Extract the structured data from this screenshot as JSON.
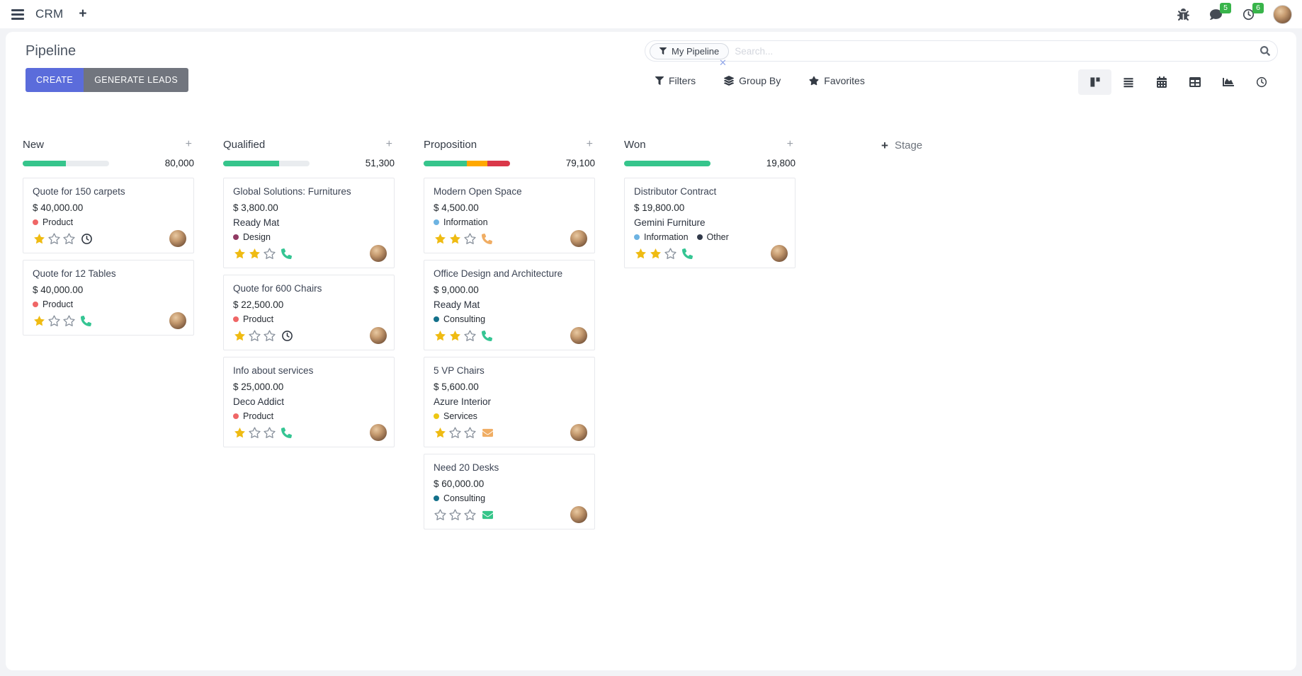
{
  "navbar": {
    "app": "CRM",
    "message_badge": "5",
    "activity_badge": "6"
  },
  "control_panel": {
    "title": "Pipeline",
    "create_label": "CREATE",
    "generate_label": "GENERATE LEADS",
    "search": {
      "facet_label": "My Pipeline",
      "placeholder": "Search..."
    },
    "filters_label": "Filters",
    "groupby_label": "Group By",
    "favorites_label": "Favorites",
    "add_stage_label": "Stage"
  },
  "colors": {
    "green": "#36c58c",
    "orange": "#ffa800",
    "red": "#da3849",
    "track": "#e9ecef",
    "star_filled": "#efbb12",
    "star_empty": "#8b939e",
    "phone_green": "#35c593",
    "phone_orange": "#f0ad63",
    "envelope_orange": "#f0ad63",
    "envelope_green": "#35c589",
    "clock_dark": "#2f3640"
  },
  "columns": [
    {
      "name": "New",
      "amount": "80,000",
      "progress": [
        {
          "color": "green",
          "pct": 50
        }
      ],
      "cards": [
        {
          "title": "Quote for 150 carpets",
          "amount": "$ 40,000.00",
          "tags": [
            {
              "label": "Product",
              "color": "#ef6666"
            }
          ],
          "stars": 1,
          "icon": "clock",
          "icon_color": "#2f3640"
        },
        {
          "title": "Quote for 12 Tables",
          "amount": "$ 40,000.00",
          "tags": [
            {
              "label": "Product",
              "color": "#ef6666"
            }
          ],
          "stars": 1,
          "icon": "phone",
          "icon_color": "#35c593"
        }
      ]
    },
    {
      "name": "Qualified",
      "amount": "51,300",
      "progress": [
        {
          "color": "green",
          "pct": 65
        }
      ],
      "cards": [
        {
          "title": "Global Solutions: Furnitures",
          "amount": "$ 3,800.00",
          "company": "Ready Mat",
          "tags": [
            {
              "label": "Design",
              "color": "#913a63"
            }
          ],
          "stars": 2,
          "icon": "phone",
          "icon_color": "#35c593"
        },
        {
          "title": "Quote for 600 Chairs",
          "amount": "$ 22,500.00",
          "tags": [
            {
              "label": "Product",
              "color": "#ef6666"
            }
          ],
          "stars": 1,
          "icon": "clock",
          "icon_color": "#2f3640"
        },
        {
          "title": "Info about services",
          "amount": "$ 25,000.00",
          "company": "Deco Addict",
          "tags": [
            {
              "label": "Product",
              "color": "#ef6666"
            }
          ],
          "stars": 1,
          "icon": "phone",
          "icon_color": "#35c593"
        }
      ]
    },
    {
      "name": "Proposition",
      "amount": "79,100",
      "progress": [
        {
          "color": "green",
          "pct": 50
        },
        {
          "color": "orange",
          "pct": 24
        },
        {
          "color": "red",
          "pct": 26
        }
      ],
      "cards": [
        {
          "title": "Modern Open Space",
          "amount": "$ 4,500.00",
          "tags": [
            {
              "label": "Information",
              "color": "#6db3e2"
            }
          ],
          "stars": 2,
          "icon": "phone",
          "icon_color": "#f0ad63"
        },
        {
          "title": "Office Design and Architecture",
          "amount": "$ 9,000.00",
          "company": "Ready Mat",
          "tags": [
            {
              "label": "Consulting",
              "color": "#13708a"
            }
          ],
          "stars": 2,
          "icon": "phone",
          "icon_color": "#35c593"
        },
        {
          "title": "5 VP Chairs",
          "amount": "$ 5,600.00",
          "company": "Azure Interior",
          "tags": [
            {
              "label": "Services",
              "color": "#edc713"
            }
          ],
          "stars": 1,
          "icon": "envelope",
          "icon_color": "#f0ad63"
        },
        {
          "title": "Need 20 Desks",
          "amount": "$ 60,000.00",
          "tags": [
            {
              "label": "Consulting",
              "color": "#13708a"
            }
          ],
          "stars": 0,
          "icon": "envelope",
          "icon_color": "#35c589"
        }
      ]
    },
    {
      "name": "Won",
      "amount": "19,800",
      "progress": [
        {
          "color": "green",
          "pct": 100
        }
      ],
      "cards": [
        {
          "title": "Distributor Contract",
          "amount": "$ 19,800.00",
          "company": "Gemini Furniture",
          "tags": [
            {
              "label": "Information",
              "color": "#6db3e2"
            },
            {
              "label": "Other",
              "color": "#323a4a"
            }
          ],
          "stars": 2,
          "icon": "phone",
          "icon_color": "#35c593"
        }
      ]
    }
  ]
}
